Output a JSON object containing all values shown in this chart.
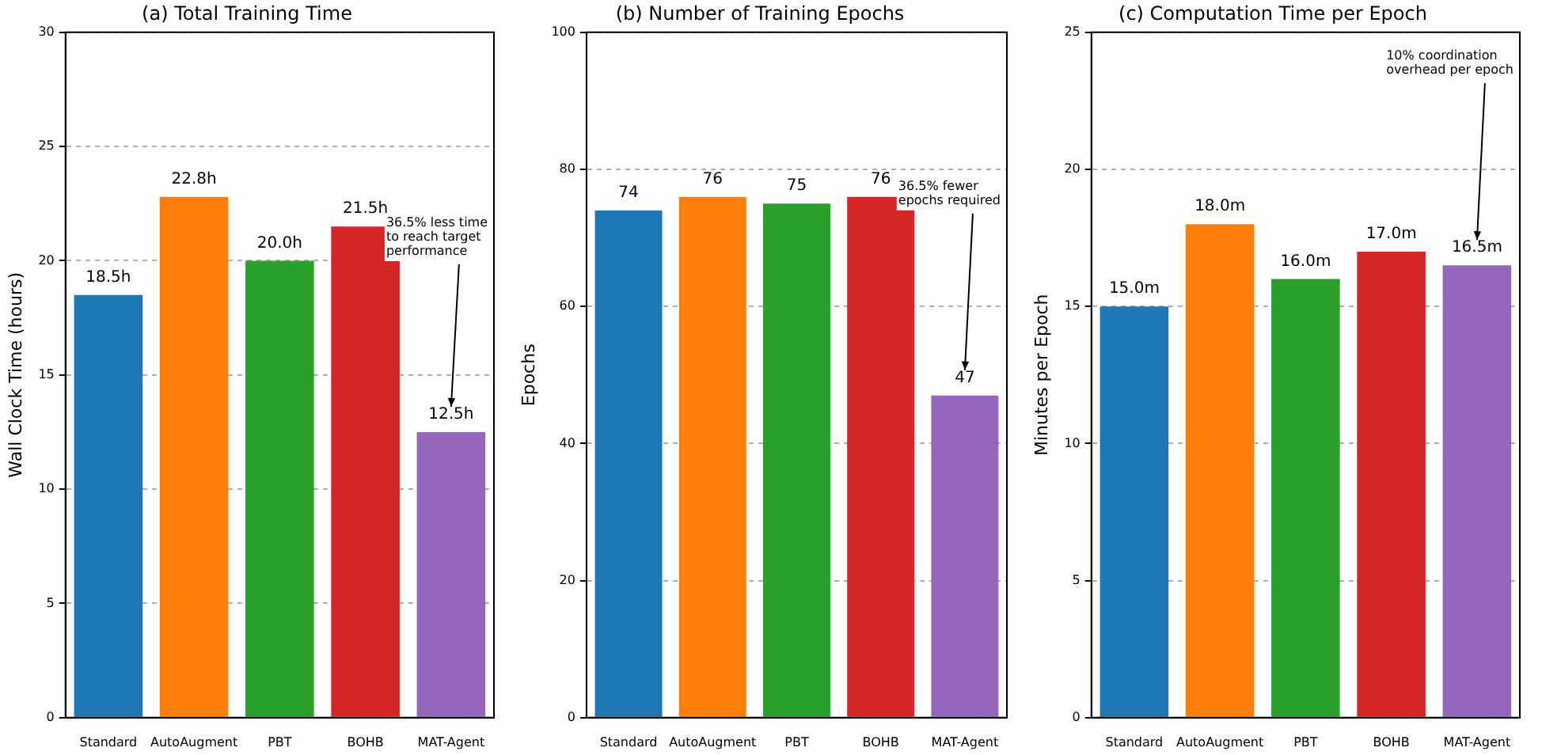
{
  "chart_data": [
    {
      "type": "bar",
      "title": "(a) Total Training Time",
      "ylabel": "Wall Clock Time (hours)",
      "categories": [
        "Standard",
        "AutoAugment",
        "PBT",
        "BOHB",
        "MAT-Agent"
      ],
      "values": [
        18.5,
        22.8,
        20.0,
        21.5,
        12.5
      ],
      "colors": [
        "#1f77b4",
        "#ff7f0e",
        "#2ca02c",
        "#d62728",
        "#9467bd"
      ],
      "value_labels": [
        "18.5h",
        "22.8h",
        "20.0h",
        "21.5h",
        "12.5h"
      ],
      "ylim": [
        0,
        30
      ],
      "yticks": [
        0,
        5,
        10,
        15,
        20,
        25,
        30
      ],
      "grid": "y",
      "legend": false,
      "annotations": [
        "36.5% less time\nto reach target\nperformance"
      ]
    },
    {
      "type": "bar",
      "title": "(b) Number of Training Epochs",
      "ylabel": "Epochs",
      "categories": [
        "Standard",
        "AutoAugment",
        "PBT",
        "BOHB",
        "MAT-Agent"
      ],
      "values": [
        74,
        76,
        75,
        76,
        47
      ],
      "colors": [
        "#1f77b4",
        "#ff7f0e",
        "#2ca02c",
        "#d62728",
        "#9467bd"
      ],
      "data_labels": true,
      "ylim": [
        0,
        100
      ],
      "yticks": [
        0,
        20,
        40,
        60,
        80,
        100
      ],
      "grid": "y",
      "legend": false,
      "annotations": [
        "36.5% fewer\nepochs required"
      ]
    },
    {
      "type": "bar",
      "title": "(c) Computation Time per Epoch",
      "ylabel": "Minutes per Epoch",
      "categories": [
        "Standard",
        "AutoAugment",
        "PBT",
        "BOHB",
        "MAT-Agent"
      ],
      "values": [
        15.0,
        18.0,
        16.0,
        17.0,
        16.5
      ],
      "colors": [
        "#1f77b4",
        "#ff7f0e",
        "#2ca02c",
        "#d62728",
        "#9467bd"
      ],
      "value_labels": [
        "15.0m",
        "18.0m",
        "16.0m",
        "17.0m",
        "16.5m"
      ],
      "ylim": [
        0,
        25
      ],
      "yticks": [
        0,
        5,
        10,
        15,
        20,
        25
      ],
      "grid": "y",
      "legend": false,
      "annotations": [
        "10% coordination\noverhead per epoch"
      ]
    }
  ]
}
